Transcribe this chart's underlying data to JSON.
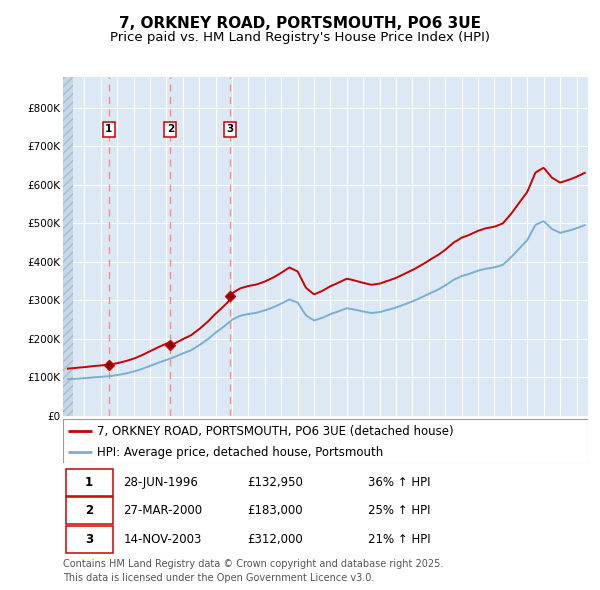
{
  "title": "7, ORKNEY ROAD, PORTSMOUTH, PO6 3UE",
  "subtitle": "Price paid vs. HM Land Registry's House Price Index (HPI)",
  "legend_line1": "7, ORKNEY ROAD, PORTSMOUTH, PO6 3UE (detached house)",
  "legend_line2": "HPI: Average price, detached house, Portsmouth",
  "footnote": "Contains HM Land Registry data © Crown copyright and database right 2025.\nThis data is licensed under the Open Government Licence v3.0.",
  "transactions": [
    {
      "label": "1",
      "date": "28-JUN-1996",
      "date_x": 1996.49,
      "price": 132950,
      "hpi_change": "36% ↑ HPI"
    },
    {
      "label": "2",
      "date": "27-MAR-2000",
      "date_x": 2000.24,
      "price": 183000,
      "hpi_change": "25% ↑ HPI"
    },
    {
      "label": "3",
      "date": "14-NOV-2003",
      "date_x": 2003.87,
      "price": 312000,
      "hpi_change": "21% ↑ HPI"
    }
  ],
  "red_line_color": "#cc0000",
  "blue_line_color": "#7aafd4",
  "dashed_line_color": "#ff8888",
  "bg_color": "#dce9f5",
  "grid_color": "#ffffff",
  "hatch_color": "#c5d8ea",
  "ylim": [
    0,
    880000
  ],
  "xlim_start": 1993.7,
  "xlim_end": 2025.7,
  "ytick_values": [
    0,
    100000,
    200000,
    300000,
    400000,
    500000,
    600000,
    700000,
    800000
  ],
  "ytick_labels": [
    "£0",
    "£100K",
    "£200K",
    "£300K",
    "£400K",
    "£500K",
    "£600K",
    "£700K",
    "£800K"
  ],
  "title_fontsize": 11,
  "subtitle_fontsize": 9.5,
  "axis_fontsize": 7.5,
  "legend_fontsize": 8.5,
  "table_fontsize": 8.5,
  "footnote_fontsize": 7.0
}
